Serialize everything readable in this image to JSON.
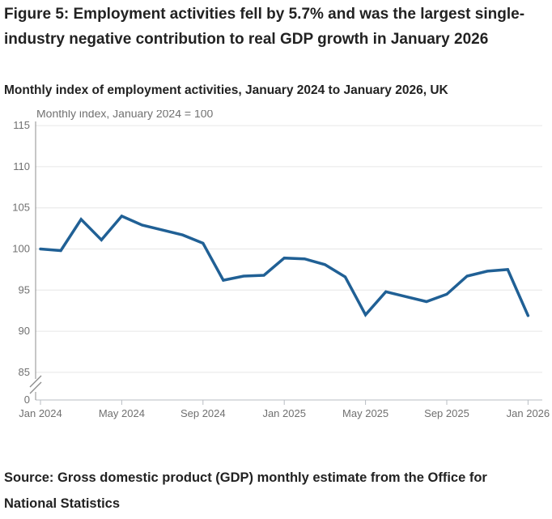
{
  "page": {
    "title": "Figure 5: Employment activities fell by 5.7% and was the largest single-industry negative contribution to real GDP growth in January 2026",
    "subtitle": "Monthly index of employment activities, January 2024 to January 2026, UK",
    "source": "Source: Gross domestic product (GDP) monthly estimate from the Office for National Statistics"
  },
  "chart_data": {
    "type": "line",
    "title": "Monthly index of employment activities, January 2024 to January 2026, UK",
    "unit_label": "Monthly index, January 2024 = 100",
    "x": [
      "Jan 2024",
      "Feb 2024",
      "Mar 2024",
      "Apr 2024",
      "May 2024",
      "Jun 2024",
      "Jul 2024",
      "Aug 2024",
      "Sep 2024",
      "Oct 2024",
      "Nov 2024",
      "Dec 2024",
      "Jan 2025",
      "Feb 2025",
      "Mar 2025",
      "Apr 2025",
      "May 2025",
      "Jun 2025",
      "Jul 2025",
      "Aug 2025",
      "Sep 2025",
      "Oct 2025",
      "Nov 2025",
      "Dec 2025",
      "Jan 2026"
    ],
    "series": [
      {
        "name": "Employment activities monthly index",
        "values": [
          100.0,
          99.8,
          103.6,
          101.1,
          104.0,
          102.9,
          102.3,
          101.7,
          100.7,
          96.2,
          96.7,
          96.8,
          98.9,
          98.8,
          98.1,
          96.6,
          92.0,
          94.8,
          94.2,
          93.6,
          94.5,
          96.7,
          97.3,
          97.5,
          91.9
        ]
      }
    ],
    "x_tick_labels": [
      "Jan 2024",
      "May 2024",
      "Sep 2024",
      "Jan 2025",
      "May 2025",
      "Sep 2025",
      "Jan 2026"
    ],
    "y_ticks": [
      85,
      90,
      95,
      100,
      105,
      110,
      115
    ],
    "zero_label": "0",
    "y_axis_break": true,
    "ylim": [
      85,
      115
    ],
    "grid": "horizontal",
    "legend": "none",
    "line_color": "#206095",
    "colors": {
      "grid": "#e6e6e6",
      "y_axis": "#8c8c8c",
      "x_axis": "#b8bdc3",
      "tick_text": "#707070"
    }
  }
}
